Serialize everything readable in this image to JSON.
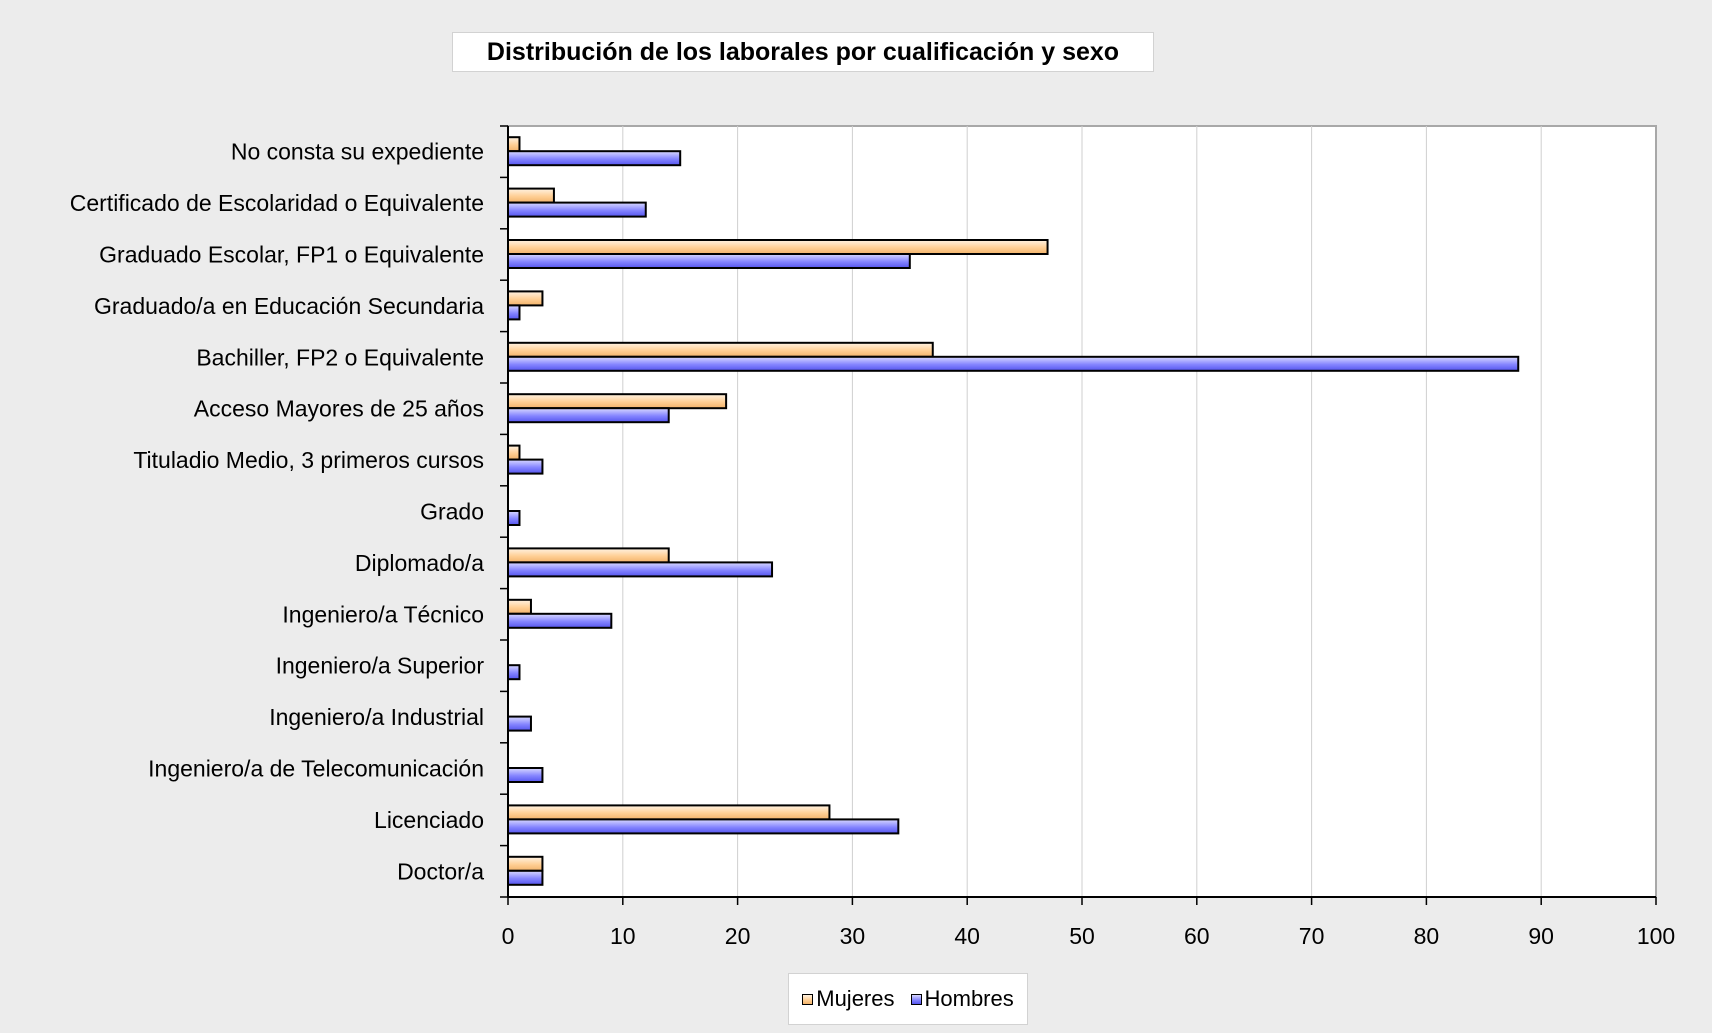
{
  "chart_data": {
    "type": "bar",
    "orientation": "horizontal",
    "title": "Distribución de los laborales por cualificación y sexo",
    "xlabel": "",
    "ylabel": "",
    "xlim": [
      0,
      100
    ],
    "x_ticks": [
      0,
      10,
      20,
      30,
      40,
      50,
      60,
      70,
      80,
      90,
      100
    ],
    "grid": "vertical",
    "legend_position": "bottom",
    "categories": [
      "No consta su expediente",
      "Certificado de Escolaridad o Equivalente",
      "Graduado Escolar, FP1 o Equivalente",
      "Graduado/a en Educación Secundaria",
      "Bachiller, FP2 o Equivalente",
      "Acceso Mayores de 25 años",
      "Tituladio Medio, 3 primeros cursos",
      "Grado",
      "Diplomado/a",
      "Ingeniero/a Técnico",
      "Ingeniero/a Superior",
      "Ingeniero/a Industrial",
      "Ingeniero/a de Telecomunicación",
      "Licenciado",
      "Doctor/a"
    ],
    "series": [
      {
        "name": "Mujeres",
        "color": "#ffc98a",
        "values": [
          1,
          4,
          47,
          3,
          37,
          19,
          1,
          0,
          14,
          2,
          0,
          0,
          0,
          28,
          3
        ]
      },
      {
        "name": "Hombres",
        "color": "#7f7fff",
        "values": [
          15,
          12,
          35,
          1,
          88,
          14,
          3,
          1,
          23,
          9,
          1,
          2,
          3,
          34,
          3
        ]
      }
    ]
  }
}
